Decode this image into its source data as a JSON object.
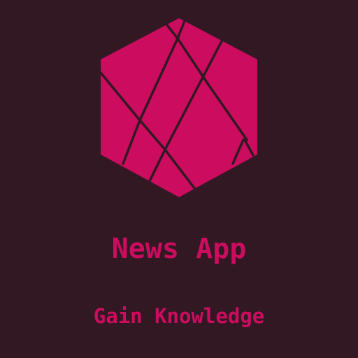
{
  "app": {
    "title": "News App",
    "tagline": "Gain Knowledge"
  },
  "logo": {
    "icon": "faceted-hexagon-gem-icon"
  },
  "colors": {
    "background": "#311822",
    "accent": "#cc0c5e"
  }
}
